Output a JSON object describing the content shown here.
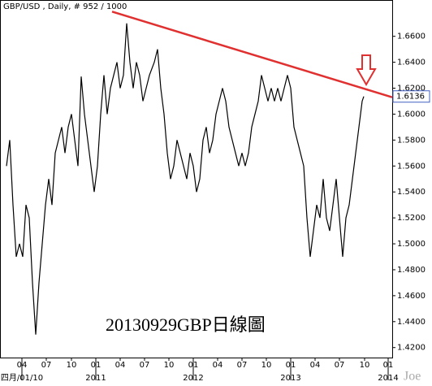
{
  "chart_data": {
    "type": "line",
    "title": "GBP/USD , Daily, # 952 / 1000",
    "annotation": "20130929GBP日線圖",
    "watermark": "Joe",
    "x": [
      8,
      12,
      16,
      20,
      24,
      28,
      32,
      36,
      40,
      44,
      48,
      52,
      56,
      60,
      64,
      68,
      72,
      76,
      80,
      84,
      88,
      92,
      96,
      100,
      104,
      108,
      112,
      116,
      120,
      124,
      128,
      132,
      136,
      140,
      144,
      148,
      152,
      156,
      160,
      164,
      168,
      172,
      176,
      180,
      184,
      190,
      194,
      198,
      202,
      206,
      210,
      214,
      218,
      222,
      226,
      230,
      234,
      238,
      242,
      246,
      250,
      254,
      258,
      262,
      266,
      270,
      274,
      278,
      282,
      286,
      290,
      294,
      298,
      302,
      306,
      310,
      314,
      318,
      322,
      326,
      330,
      334,
      338,
      342,
      346,
      350,
      354,
      358,
      362,
      366,
      370,
      374,
      378,
      382,
      386,
      390,
      394,
      398,
      402,
      406,
      410,
      414,
      418,
      422,
      426,
      430,
      434,
      438,
      442,
      446,
      448
    ],
    "series": [
      {
        "name": "GBP/USD",
        "color": "#000000",
        "values": [
          1.56,
          1.58,
          1.53,
          1.49,
          1.5,
          1.49,
          1.53,
          1.52,
          1.47,
          1.43,
          1.47,
          1.5,
          1.53,
          1.55,
          1.53,
          1.57,
          1.58,
          1.59,
          1.57,
          1.59,
          1.6,
          1.58,
          1.56,
          1.629,
          1.6,
          1.58,
          1.56,
          1.54,
          1.56,
          1.6,
          1.63,
          1.6,
          1.62,
          1.63,
          1.64,
          1.62,
          1.63,
          1.67,
          1.64,
          1.62,
          1.64,
          1.63,
          1.61,
          1.62,
          1.63,
          1.64,
          1.65,
          1.62,
          1.6,
          1.57,
          1.55,
          1.56,
          1.58,
          1.57,
          1.56,
          1.55,
          1.57,
          1.56,
          1.54,
          1.55,
          1.58,
          1.59,
          1.57,
          1.58,
          1.6,
          1.61,
          1.62,
          1.61,
          1.59,
          1.58,
          1.57,
          1.56,
          1.57,
          1.56,
          1.57,
          1.59,
          1.6,
          1.61,
          1.63,
          1.62,
          1.61,
          1.62,
          1.61,
          1.62,
          1.61,
          1.62,
          1.63,
          1.62,
          1.59,
          1.58,
          1.57,
          1.56,
          1.52,
          1.49,
          1.51,
          1.53,
          1.52,
          1.55,
          1.52,
          1.51,
          1.53,
          1.55,
          1.52,
          1.49,
          1.52,
          1.53,
          1.55,
          1.57,
          1.59,
          1.61,
          1.6136
        ]
      }
    ],
    "trendline": {
      "x": [
        138,
        483
      ],
      "values": [
        1.679,
        1.613
      ],
      "color": "#e03030"
    },
    "last_price": 1.6136,
    "xlim": [
      0,
      483
    ],
    "ylim": [
      1.4123,
      1.688
    ],
    "yticks": [
      {
        "value": 1.42,
        "label": "1.4200"
      },
      {
        "value": 1.44,
        "label": "1.4400"
      },
      {
        "value": 1.46,
        "label": "1.4600"
      },
      {
        "value": 1.48,
        "label": "1.4800"
      },
      {
        "value": 1.5,
        "label": "1.5000"
      },
      {
        "value": 1.52,
        "label": "1.5200"
      },
      {
        "value": 1.54,
        "label": "1.5400"
      },
      {
        "value": 1.56,
        "label": "1.5600"
      },
      {
        "value": 1.58,
        "label": "1.5800"
      },
      {
        "value": 1.6,
        "label": "1.6000"
      },
      {
        "value": 1.62,
        "label": "1.6200"
      },
      {
        "value": 1.64,
        "label": "1.6400"
      },
      {
        "value": 1.66,
        "label": "1.6600"
      }
    ],
    "xticks": [
      {
        "value": 27,
        "label": "04"
      },
      {
        "value": 57,
        "label": "07"
      },
      {
        "value": 88,
        "label": "10"
      },
      {
        "value": 118,
        "label": "01"
      },
      {
        "value": 148,
        "label": "04"
      },
      {
        "value": 178,
        "label": "07"
      },
      {
        "value": 208,
        "label": "10"
      },
      {
        "value": 238,
        "label": "01"
      },
      {
        "value": 268,
        "label": "04"
      },
      {
        "value": 298,
        "label": "07"
      },
      {
        "value": 328,
        "label": "10"
      },
      {
        "value": 358,
        "label": "01"
      },
      {
        "value": 388,
        "label": "04"
      },
      {
        "value": 418,
        "label": "07"
      },
      {
        "value": 449,
        "label": "10"
      },
      {
        "value": 478,
        "label": "01"
      }
    ],
    "xticks_major": [
      {
        "value": 27,
        "label": "四月/01/10"
      },
      {
        "value": 118,
        "label": "2011"
      },
      {
        "value": 238,
        "label": "2012"
      },
      {
        "value": 358,
        "label": "2013"
      },
      {
        "value": 478,
        "label": "2014"
      }
    ]
  }
}
